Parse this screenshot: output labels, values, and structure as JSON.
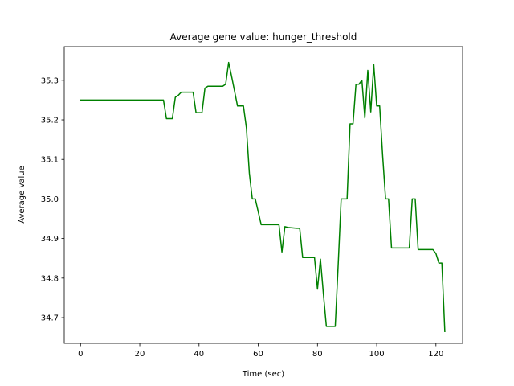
{
  "chart_data": {
    "type": "line",
    "title": "Average gene value: hunger_threshold",
    "xlabel": "Time (sec)",
    "ylabel": "Average value",
    "xlim": [
      -5.5,
      129
    ],
    "ylim": [
      34.635,
      35.385
    ],
    "xticks": [
      0,
      20,
      40,
      60,
      80,
      100,
      120
    ],
    "yticks": [
      34.7,
      34.8,
      34.9,
      35.0,
      35.1,
      35.2,
      35.3
    ],
    "grid": false,
    "series": [
      {
        "color": "#008000",
        "x": [
          0,
          28,
          29,
          31,
          32,
          33,
          34,
          38,
          39,
          41,
          42,
          43,
          48,
          49,
          50,
          51,
          53,
          55,
          56,
          57,
          58,
          59,
          61,
          62,
          67,
          68,
          69,
          70,
          73,
          74,
          75,
          78,
          79,
          80,
          81,
          82,
          83,
          84,
          86,
          87,
          88,
          90,
          91,
          92,
          93,
          94,
          95,
          96,
          97,
          98,
          99,
          100,
          101,
          102,
          103,
          104,
          105,
          110,
          111,
          112,
          113,
          114,
          117,
          118,
          119,
          120,
          121,
          122,
          123
        ],
        "y": [
          35.25,
          35.25,
          35.203,
          35.203,
          35.257,
          35.262,
          35.27,
          35.27,
          35.218,
          35.218,
          35.28,
          35.285,
          35.285,
          35.29,
          35.345,
          35.31,
          35.235,
          35.235,
          35.18,
          35.065,
          35.0,
          35.0,
          34.935,
          34.935,
          34.935,
          34.866,
          34.93,
          34.928,
          34.926,
          34.926,
          34.852,
          34.852,
          34.852,
          34.772,
          34.848,
          34.76,
          34.678,
          34.678,
          34.678,
          34.835,
          35.0,
          35.0,
          35.19,
          35.19,
          35.29,
          35.29,
          35.3,
          35.205,
          35.325,
          35.22,
          35.34,
          35.235,
          35.235,
          35.11,
          35.0,
          35.0,
          34.876,
          34.876,
          34.876,
          35.0,
          35.0,
          34.872,
          34.872,
          34.872,
          34.872,
          34.862,
          34.838,
          34.838,
          34.665
        ]
      }
    ]
  }
}
